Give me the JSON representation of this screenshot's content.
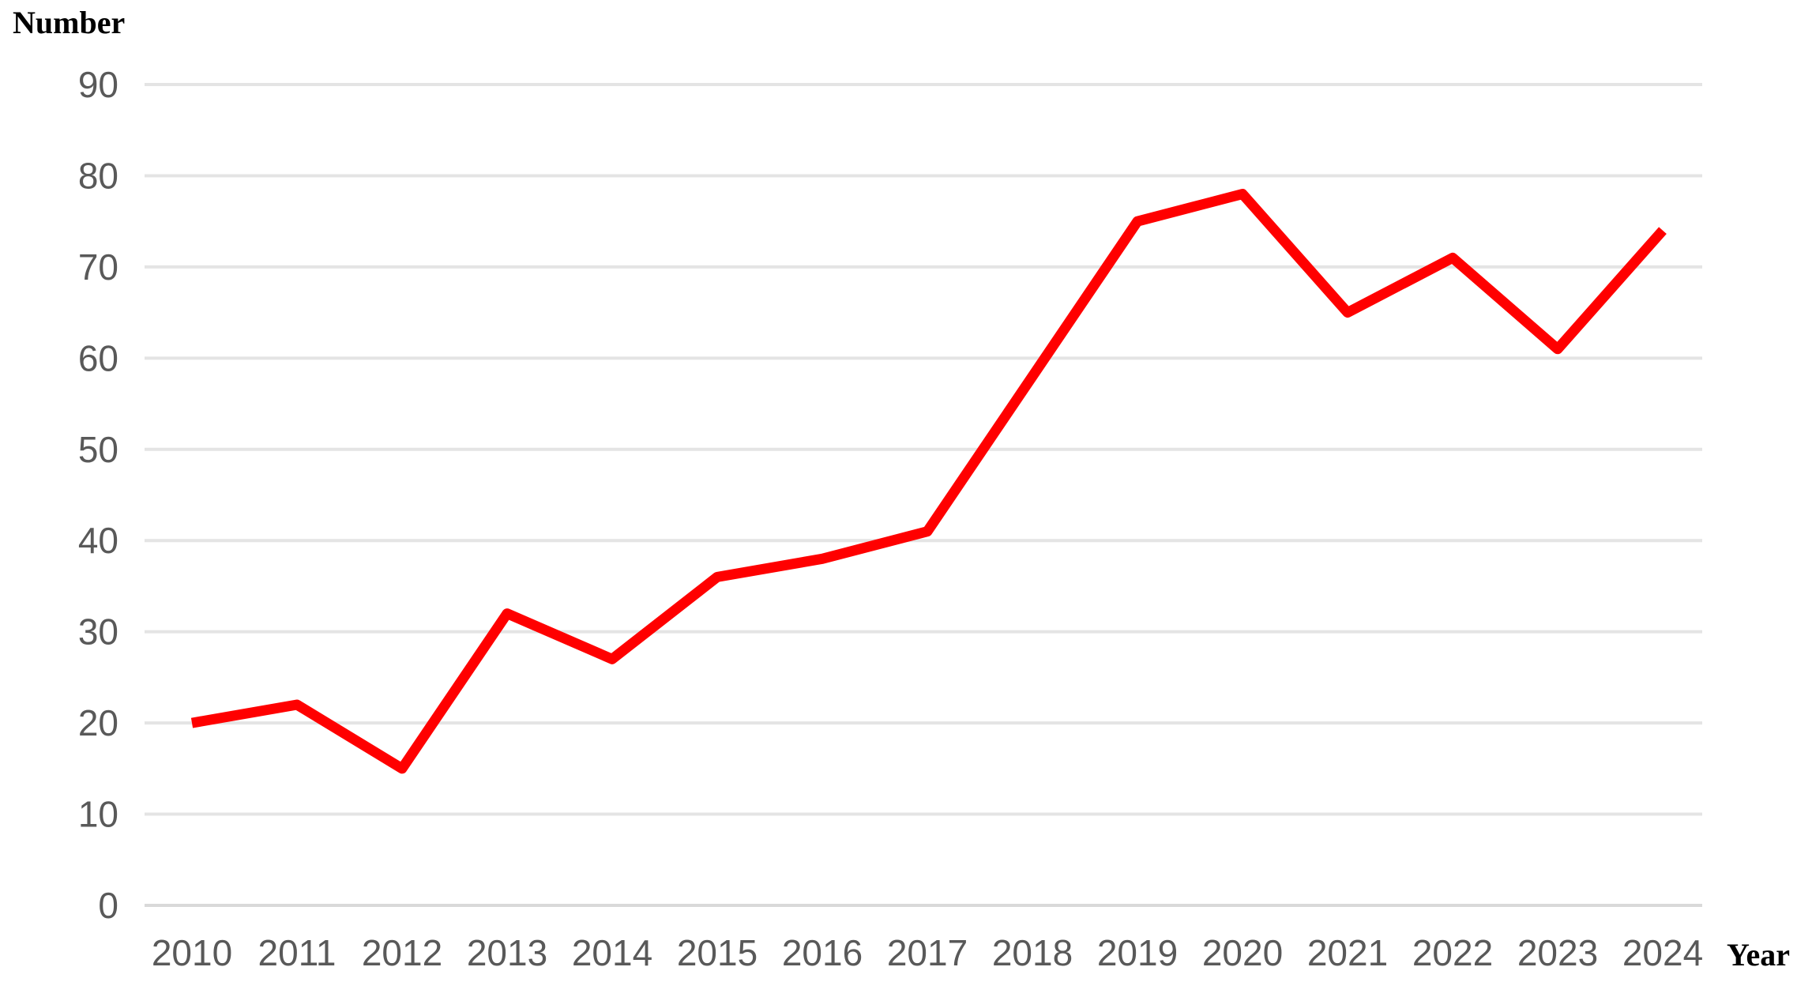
{
  "chart_data": {
    "type": "line",
    "title": "",
    "categories": [
      "2010",
      "2011",
      "2012",
      "2013",
      "2014",
      "2015",
      "2016",
      "2017",
      "2018",
      "2019",
      "2020",
      "2021",
      "2022",
      "2023",
      "2024"
    ],
    "series": [
      {
        "name": "Number",
        "values": [
          20,
          22,
          15,
          32,
          27,
          36,
          38,
          41,
          58,
          75,
          78,
          65,
          71,
          61,
          74
        ],
        "color": "#ff0000",
        "stroke_width": 13
      }
    ],
    "xlabel": "Year",
    "ylabel": "Number",
    "ylim": [
      0,
      90
    ],
    "ytick_step": 10,
    "yticks": [
      "0",
      "10",
      "20",
      "30",
      "40",
      "50",
      "60",
      "70",
      "80",
      "90"
    ],
    "grid": true,
    "legend_position": "none"
  },
  "colors": {
    "background": "#ffffff",
    "gridline": "#e4e4e4",
    "zero_gridline": "#d9d9d9",
    "tick_label": "#595959",
    "axis_title": "#000000",
    "series": "#ff0000"
  }
}
